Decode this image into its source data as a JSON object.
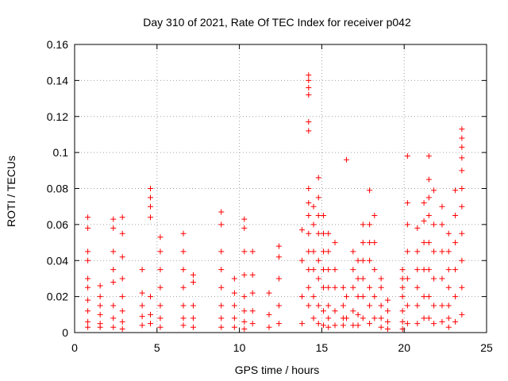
{
  "chart_data": {
    "type": "scatter",
    "title": "Day 310 of 2021, Rate Of TEC Index for receiver p042",
    "xlabel": "GPS time / hours",
    "ylabel": "ROTI / TECUs",
    "xlim": [
      0,
      25
    ],
    "ylim": [
      0,
      0.16
    ],
    "x_ticks": [
      "0",
      "5",
      "10",
      "15",
      "20",
      "25"
    ],
    "y_ticks": [
      "0",
      "0.02",
      "0.04",
      "0.06",
      "0.08",
      "0.1",
      "0.12",
      "0.14",
      "0.16"
    ],
    "grid": true,
    "marker": "+",
    "color": "#ff0000",
    "series": [
      {
        "name": "ROTI",
        "x": [
          0.8,
          0.8,
          0.8,
          0.8,
          0.8,
          0.8,
          0.8,
          0.8,
          0.8,
          0.8,
          1.55,
          1.55,
          1.55,
          1.55,
          1.55,
          1.55,
          2.35,
          2.35,
          2.35,
          2.35,
          2.35,
          2.35,
          2.35,
          2.35,
          2.9,
          2.9,
          2.9,
          2.9,
          2.9,
          2.9,
          2.9,
          2.9,
          4.1,
          4.1,
          4.1,
          4.1,
          4.1,
          4.6,
          4.6,
          4.6,
          4.6,
          4.6,
          4.6,
          4.6,
          5.2,
          5.2,
          5.2,
          5.2,
          5.2,
          5.2,
          5.2,
          6.6,
          6.6,
          6.6,
          6.6,
          6.6,
          6.6,
          6.6,
          7.2,
          7.2,
          7.2,
          7.2,
          7.2,
          8.9,
          8.9,
          8.9,
          8.9,
          8.9,
          8.9,
          8.9,
          8.9,
          9.7,
          9.7,
          9.7,
          9.7,
          9.7,
          10.3,
          10.3,
          10.3,
          10.3,
          10.3,
          10.3,
          10.3,
          10.3,
          10.8,
          10.8,
          10.8,
          10.8,
          10.8,
          11.8,
          11.8,
          11.8,
          12.4,
          12.4,
          12.4,
          12.4,
          12.4,
          13.8,
          13.8,
          13.8,
          13.8,
          14.2,
          14.2,
          14.2,
          14.2,
          14.2,
          14.2,
          14.2,
          14.2,
          14.2,
          14.2,
          14.2,
          14.2,
          14.2,
          14.2,
          14.5,
          14.5,
          14.5,
          14.5,
          14.5,
          14.5,
          14.8,
          14.8,
          14.8,
          14.8,
          14.8,
          14.8,
          14.8,
          14.8,
          15.1,
          15.1,
          15.1,
          15.1,
          15.1,
          15.1,
          15.1,
          15.4,
          15.4,
          15.4,
          15.4,
          15.4,
          15.4,
          15.4,
          15.8,
          15.8,
          15.8,
          15.8,
          15.8,
          16.3,
          16.3,
          16.3,
          16.3,
          16.5,
          16.5,
          16.5,
          16.9,
          16.9,
          16.9,
          16.9,
          16.9,
          17.2,
          17.2,
          17.2,
          17.2,
          17.2,
          17.5,
          17.5,
          17.5,
          17.5,
          17.5,
          17.5,
          17.9,
          17.9,
          17.9,
          17.9,
          17.9,
          17.9,
          17.9,
          18.2,
          18.2,
          18.2,
          18.2,
          18.2,
          18.6,
          18.6,
          18.6,
          18.6,
          18.6,
          19,
          19,
          19,
          19,
          19.9,
          19.9,
          19.9,
          19.9,
          19.9,
          19.9,
          19.9,
          20.2,
          20.2,
          20.2,
          20.2,
          20.2,
          20.2,
          20.2,
          20.8,
          20.8,
          20.8,
          20.8,
          20.8,
          20.8,
          21.2,
          21.2,
          21.2,
          21.2,
          21.2,
          21.2,
          21.5,
          21.5,
          21.5,
          21.5,
          21.5,
          21.5,
          21.5,
          21.5,
          21.8,
          21.8,
          21.8,
          21.8,
          21.8,
          21.8,
          22.3,
          22.3,
          22.3,
          22.3,
          22.3,
          22.3,
          22.7,
          22.7,
          22.7,
          22.7,
          22.7,
          22.7,
          22.7,
          23.1,
          23.1,
          23.1,
          23.1,
          23.1,
          23.1,
          23.5,
          23.5,
          23.5,
          23.5,
          23.5,
          23.5,
          23.5,
          23.5,
          23.5,
          23.5,
          23.5
        ],
        "y": [
          0.064,
          0.058,
          0.045,
          0.04,
          0.03,
          0.025,
          0.018,
          0.012,
          0.006,
          0.003,
          0.026,
          0.02,
          0.015,
          0.01,
          0.005,
          0.003,
          0.063,
          0.058,
          0.045,
          0.035,
          0.028,
          0.015,
          0.008,
          0.003,
          0.064,
          0.055,
          0.042,
          0.03,
          0.02,
          0.012,
          0.006,
          0.002,
          0.035,
          0.022,
          0.015,
          0.009,
          0.004,
          0.08,
          0.075,
          0.07,
          0.064,
          0.02,
          0.01,
          0.005,
          0.053,
          0.045,
          0.035,
          0.025,
          0.015,
          0.008,
          0.003,
          0.055,
          0.045,
          0.035,
          0.025,
          0.015,
          0.008,
          0.004,
          0.032,
          0.028,
          0.015,
          0.008,
          0.003,
          0.067,
          0.06,
          0.045,
          0.035,
          0.025,
          0.015,
          0.008,
          0.003,
          0.03,
          0.022,
          0.015,
          0.008,
          0.003,
          0.063,
          0.058,
          0.045,
          0.032,
          0.02,
          0.012,
          0.006,
          0.002,
          0.045,
          0.032,
          0.022,
          0.012,
          0.005,
          0.022,
          0.01,
          0.003,
          0.048,
          0.042,
          0.03,
          0.015,
          0.005,
          0.057,
          0.04,
          0.02,
          0.005,
          0.143,
          0.14,
          0.136,
          0.132,
          0.117,
          0.112,
          0.08,
          0.072,
          0.065,
          0.055,
          0.045,
          0.035,
          0.025,
          0.015,
          0.07,
          0.06,
          0.045,
          0.035,
          0.02,
          0.008,
          0.086,
          0.075,
          0.065,
          0.055,
          0.04,
          0.03,
          0.015,
          0.005,
          0.065,
          0.055,
          0.045,
          0.035,
          0.025,
          0.012,
          0.004,
          0.055,
          0.045,
          0.035,
          0.025,
          0.015,
          0.008,
          0.003,
          0.05,
          0.035,
          0.025,
          0.012,
          0.004,
          0.025,
          0.015,
          0.008,
          0.004,
          0.096,
          0.02,
          0.008,
          0.045,
          0.035,
          0.025,
          0.012,
          0.004,
          0.04,
          0.03,
          0.02,
          0.01,
          0.004,
          0.06,
          0.05,
          0.04,
          0.03,
          0.02,
          0.008,
          0.079,
          0.06,
          0.05,
          0.04,
          0.025,
          0.015,
          0.005,
          0.065,
          0.05,
          0.035,
          0.02,
          0.008,
          0.03,
          0.025,
          0.015,
          0.008,
          0.003,
          0.018,
          0.012,
          0.006,
          0.002,
          0.035,
          0.03,
          0.025,
          0.02,
          0.012,
          0.006,
          0.002,
          0.098,
          0.072,
          0.06,
          0.045,
          0.03,
          0.015,
          0.005,
          0.058,
          0.045,
          0.035,
          0.025,
          0.015,
          0.005,
          0.072,
          0.062,
          0.05,
          0.035,
          0.02,
          0.008,
          0.098,
          0.085,
          0.075,
          0.065,
          0.05,
          0.035,
          0.02,
          0.008,
          0.079,
          0.06,
          0.045,
          0.03,
          0.015,
          0.005,
          0.07,
          0.06,
          0.045,
          0.03,
          0.015,
          0.006,
          0.055,
          0.045,
          0.035,
          0.025,
          0.015,
          0.008,
          0.003,
          0.079,
          0.065,
          0.05,
          0.035,
          0.02,
          0.006,
          0.113,
          0.108,
          0.103,
          0.097,
          0.09,
          0.08,
          0.07,
          0.055,
          0.04,
          0.025,
          0.01
        ]
      }
    ]
  }
}
